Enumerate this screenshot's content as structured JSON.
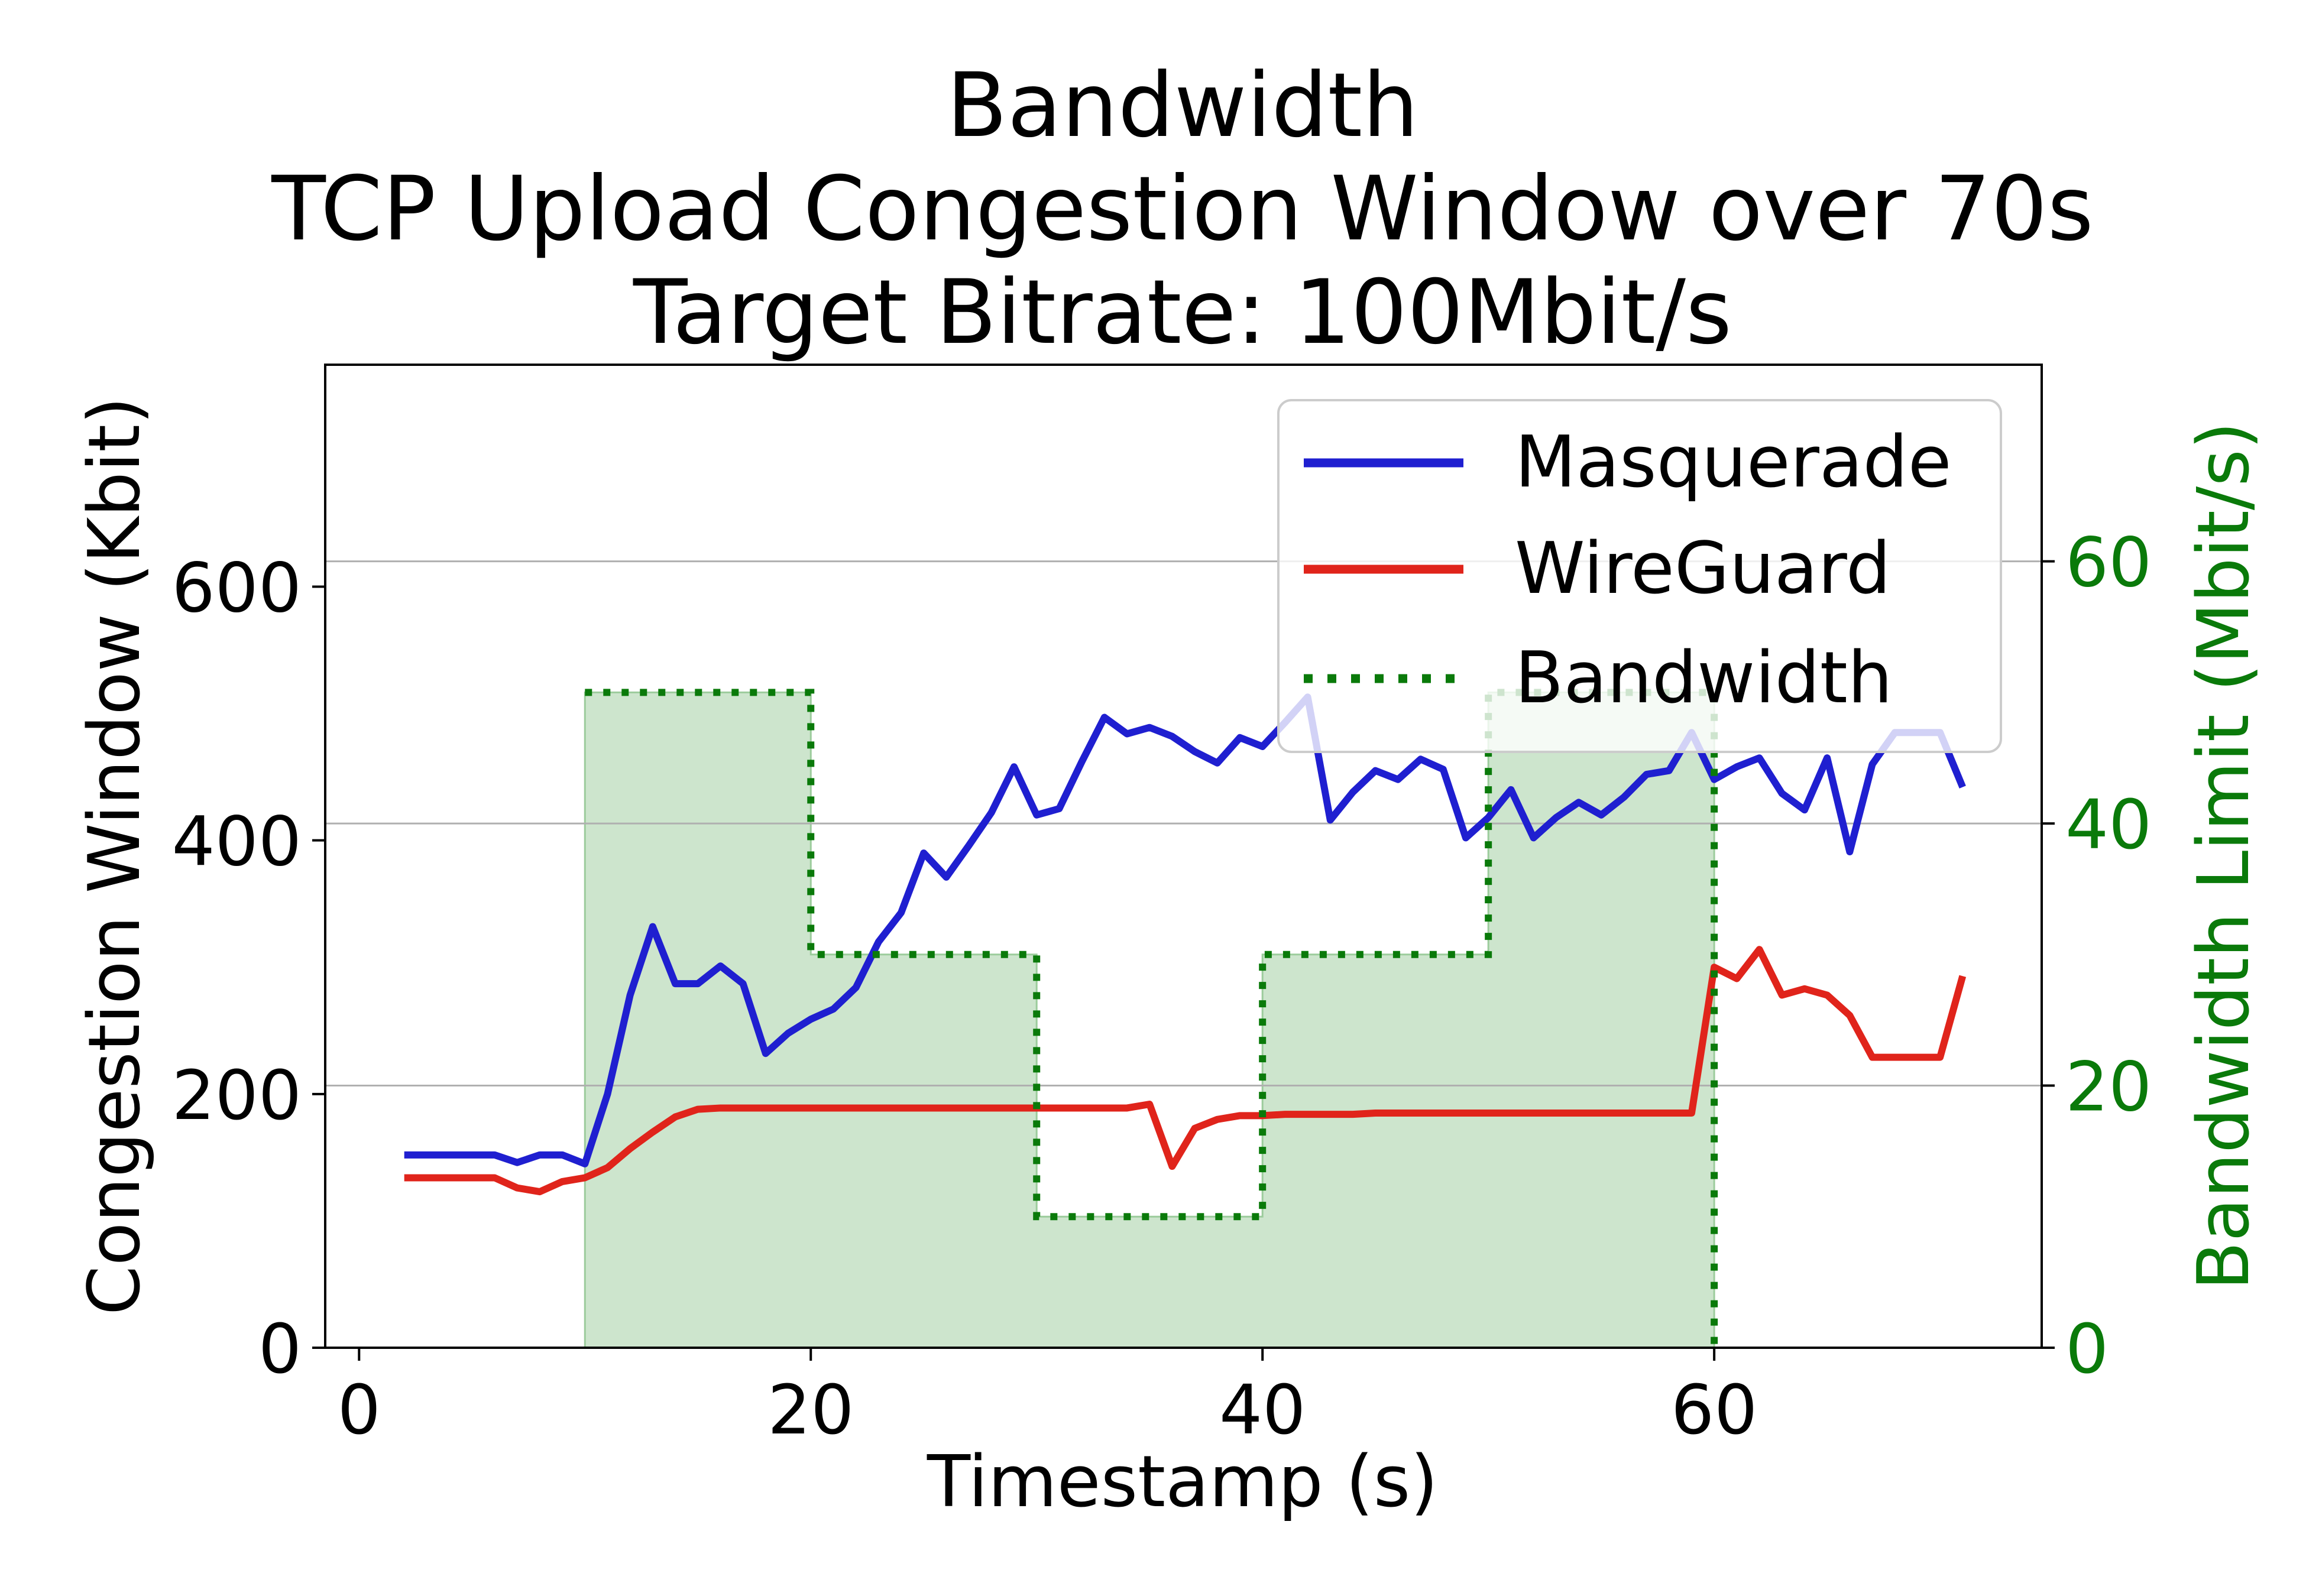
{
  "chart_data": {
    "type": "line",
    "title_lines": [
      "Bandwidth",
      "TCP Upload Congestion Window over 70s",
      "Target Bitrate: 100Mbit/s"
    ],
    "xlabel": "Timestamp (s)",
    "ylabel": "Congestion Window (Kbit)",
    "y2label": "Bandwidth Limit (Mbit/s)",
    "xlim": [
      -1.5,
      74.5
    ],
    "ylim": [
      0,
      775
    ],
    "y2lim": [
      0,
      75
    ],
    "xticks": [
      0,
      20,
      40,
      60
    ],
    "yticks": [
      0,
      200,
      400,
      600
    ],
    "y2ticks": [
      0,
      20,
      40,
      60
    ],
    "grid": "right-axis horizontal",
    "legend_position": "top-right",
    "colors": {
      "masquerade": "#1f1fd0",
      "wireguard": "#e0241b",
      "bandwidth_line": "#0a7a0a",
      "bandwidth_fill": "#cde5cd",
      "right_axis": "#0a7a0a"
    },
    "series": [
      {
        "name": "Masquerade",
        "axis": "left",
        "x": [
          2,
          3,
          4,
          5,
          6,
          7,
          8,
          9,
          10,
          11,
          12,
          13,
          14,
          15,
          16,
          17,
          18,
          19,
          20,
          21,
          22,
          23,
          24,
          25,
          26,
          27,
          28,
          29,
          30,
          31,
          32,
          33,
          34,
          35,
          36,
          37,
          38,
          39,
          40,
          41,
          42,
          43,
          44,
          45,
          46,
          47,
          48,
          49,
          50,
          51,
          52,
          53,
          54,
          55,
          56,
          57,
          58,
          59,
          60,
          61,
          62,
          63,
          64,
          65,
          66,
          67,
          68,
          69,
          70,
          71
        ],
        "values": [
          152,
          152,
          152,
          152,
          152,
          146,
          152,
          152,
          145,
          200,
          278,
          332,
          287,
          287,
          301,
          287,
          232,
          248,
          259,
          267,
          284,
          320,
          343,
          390,
          371,
          396,
          422,
          458,
          420,
          425,
          462,
          497,
          484,
          489,
          482,
          470,
          461,
          481,
          474,
          493,
          513,
          416,
          438,
          455,
          448,
          464,
          456,
          402,
          418,
          440,
          402,
          418,
          430,
          420,
          434,
          452,
          455,
          485,
          448,
          458,
          465,
          437,
          424,
          465,
          391,
          460,
          485,
          485,
          485,
          442
        ]
      },
      {
        "name": "WireGuard",
        "axis": "left",
        "x": [
          2,
          3,
          4,
          5,
          6,
          7,
          8,
          9,
          10,
          11,
          12,
          13,
          14,
          15,
          16,
          17,
          18,
          19,
          20,
          21,
          22,
          23,
          24,
          25,
          26,
          27,
          28,
          29,
          30,
          31,
          32,
          33,
          34,
          35,
          36,
          37,
          38,
          39,
          40,
          41,
          42,
          43,
          44,
          45,
          46,
          47,
          48,
          49,
          50,
          51,
          52,
          53,
          54,
          55,
          56,
          57,
          58,
          59,
          60,
          61,
          62,
          63,
          64,
          65,
          66,
          67,
          68,
          69,
          70,
          71
        ],
        "values": [
          134,
          134,
          134,
          134,
          134,
          126,
          123,
          131,
          134,
          142,
          157,
          170,
          182,
          188,
          189,
          189,
          189,
          189,
          189,
          189,
          189,
          189,
          189,
          189,
          189,
          189,
          189,
          189,
          189,
          189,
          189,
          189,
          189,
          192,
          143,
          173,
          180,
          183,
          183,
          184,
          184,
          184,
          184,
          185,
          185,
          185,
          185,
          185,
          185,
          185,
          185,
          185,
          185,
          185,
          185,
          185,
          185,
          185,
          300,
          291,
          314,
          278,
          283,
          278,
          262,
          229,
          229,
          229,
          229,
          293
        ]
      },
      {
        "name": "Bandwidth",
        "axis": "right",
        "step": "post",
        "x": [
          10,
          20,
          30,
          40,
          50,
          60
        ],
        "values": [
          50,
          30,
          10,
          30,
          50,
          0
        ]
      }
    ]
  }
}
